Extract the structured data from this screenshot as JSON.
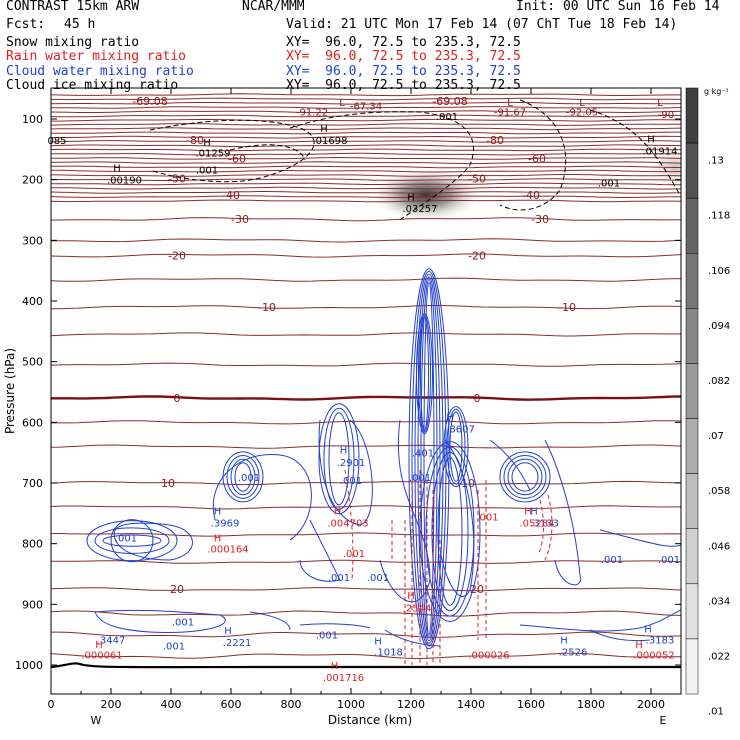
{
  "header": {
    "model": "CONTRAST 15km ARW",
    "center": "NCAR/MMM",
    "init": "Init: 00 UTC Sun 16 Feb 14",
    "fcst_label": "Fcst:",
    "fcst_value": "45 h",
    "valid": "Valid: 21 UTC Mon 17 Feb 14 (07 ChT Tue 18 Feb 14)"
  },
  "fields": [
    {
      "name": "Snow mixing ratio",
      "color": "#000000",
      "xy": "XY=  96.0, 72.5 to 235.3, 72.5"
    },
    {
      "name": "Rain water mixing ratio",
      "color": "#e02020",
      "xy": "XY=  96.0, 72.5 to 235.3, 72.5"
    },
    {
      "name": "Cloud water mixing ratio",
      "color": "#2040d0",
      "xy": "XY=  96.0, 72.5 to 235.3, 72.5"
    },
    {
      "name": "Cloud ice mixing ratio",
      "color": "#000000",
      "xy": "XY=  96.0, 72.5 to 235.3, 72.5"
    }
  ],
  "chart_data": {
    "type": "contour",
    "xlabel": "Distance (km)",
    "ylabel": "Pressure (hPa)",
    "xlim": [
      0,
      2100
    ],
    "ylim": [
      1050,
      50
    ],
    "x_ticks": [
      "0",
      "200",
      "400",
      "600",
      "800",
      "1000",
      "1200",
      "1400",
      "1600",
      "1800",
      "2000"
    ],
    "y_ticks": [
      "100",
      "200",
      "300",
      "400",
      "500",
      "600",
      "700",
      "800",
      "900",
      "1000"
    ],
    "x_end_labels": {
      "left": "W",
      "right": "E"
    },
    "colorbar": {
      "unit": "g kg⁻¹",
      "ticks": [
        ".13",
        ".118",
        ".106",
        ".094",
        ".082",
        ".07",
        ".058",
        ".046",
        ".034",
        ".022",
        ".01"
      ],
      "colors": [
        "#404040",
        "#525252",
        "#646464",
        "#767676",
        "#888888",
        "#9a9a9a",
        "#acacac",
        "#bebebe",
        "#d0d0d0",
        "#e2e2e2",
        "#f2f2f2"
      ]
    },
    "temperature_contours": [
      {
        "p": 70,
        "label": "-69.08",
        "label_x": 330
      },
      {
        "p": 135,
        "label": "-80",
        "label_x": 480
      },
      {
        "p": 165,
        "label": "-60",
        "label_x": 620
      },
      {
        "p": 198,
        "label": "-50",
        "label_x": 420
      },
      {
        "p": 225,
        "label": "-40",
        "label_x": 600
      },
      {
        "p": 265,
        "label": "-30",
        "label_x": 630
      },
      {
        "p": 325,
        "label": "-20",
        "label_x": 420
      },
      {
        "p": 410,
        "label": "-10",
        "label_x": 720
      },
      {
        "p": 560,
        "label": "0",
        "label_x": 420
      },
      {
        "p": 700,
        "label": "10",
        "label_x": 390
      },
      {
        "p": 875,
        "label": "20",
        "label_x": 420
      }
    ],
    "annotations": [
      {
        "text": "L",
        "x": 970,
        "p": 72,
        "color": "#8b1a1a"
      },
      {
        "text": "-67.34",
        "x": 1050,
        "p": 78,
        "color": "#8b1a1a"
      },
      {
        "text": "-91.22",
        "x": 870,
        "p": 88,
        "color": "#8b1a1a"
      },
      {
        "text": "L",
        "x": 1530,
        "p": 72,
        "color": "#8b1a1a"
      },
      {
        "text": "-91.67",
        "x": 1530,
        "p": 88,
        "color": "#8b1a1a"
      },
      {
        "text": "L",
        "x": 1770,
        "p": 72,
        "color": "#8b1a1a"
      },
      {
        "text": "-92.05",
        "x": 1770,
        "p": 88,
        "color": "#8b1a1a"
      },
      {
        "text": "L",
        "x": 2030,
        "p": 72,
        "color": "#8b1a1a"
      },
      {
        "text": "-90",
        "x": 2050,
        "p": 92,
        "color": "#8b1a1a"
      },
      {
        "text": ".001",
        "x": 1320,
        "p": 95,
        "color": "#000000"
      },
      {
        "text": "H",
        "x": 910,
        "p": 115,
        "color": "#000000"
      },
      {
        "text": ".01698",
        "x": 930,
        "p": 135,
        "color": "#000000"
      },
      {
        "text": "H",
        "x": 520,
        "p": 138,
        "color": "#000000"
      },
      {
        "text": ".01259",
        "x": 540,
        "p": 155,
        "color": "#000000"
      },
      {
        "text": "H",
        "x": 2000,
        "p": 132,
        "color": "#000000"
      },
      {
        "text": ".01914",
        "x": 2030,
        "p": 152,
        "color": "#000000"
      },
      {
        "text": "085",
        "x": 20,
        "p": 135,
        "color": "#000000"
      },
      {
        "text": "H",
        "x": 220,
        "p": 180,
        "color": "#000000"
      },
      {
        "text": ".00190",
        "x": 245,
        "p": 200,
        "color": "#000000"
      },
      {
        "text": ".001",
        "x": 520,
        "p": 183,
        "color": "#000000"
      },
      {
        "text": ".001",
        "x": 1860,
        "p": 205,
        "color": "#000000"
      },
      {
        "text": "H",
        "x": 1200,
        "p": 228,
        "color": "#000000"
      },
      {
        "text": ".03257",
        "x": 1230,
        "p": 247,
        "color": "#000000"
      },
      {
        "text": "H",
        "x": 1330,
        "p": 590,
        "color": "#2040d0"
      },
      {
        "text": ".8607",
        "x": 1365,
        "p": 610,
        "color": "#2040d0"
      },
      {
        "text": ".401",
        "x": 1240,
        "p": 650,
        "color": "#2040d0"
      },
      {
        "text": "H",
        "x": 975,
        "p": 645,
        "color": "#2040d0"
      },
      {
        "text": ".2901",
        "x": 1000,
        "p": 665,
        "color": "#2040d0"
      },
      {
        "text": ".001",
        "x": 660,
        "p": 690,
        "color": "#2040d0"
      },
      {
        "text": ".001",
        "x": 1000,
        "p": 695,
        "color": "#2040d0"
      },
      {
        "text": ".001",
        "x": 1230,
        "p": 690,
        "color": "#2040d0"
      },
      {
        "text": "H",
        "x": 555,
        "p": 745,
        "color": "#2040d0"
      },
      {
        "text": ".3969",
        "x": 580,
        "p": 765,
        "color": "#2040d0"
      },
      {
        "text": ".001",
        "x": 250,
        "p": 790,
        "color": "#2040d0"
      },
      {
        "text": "H",
        "x": 1610,
        "p": 745,
        "color": "#2040d0"
      },
      {
        "text": ".3133",
        "x": 1645,
        "p": 765,
        "color": "#2040d0"
      },
      {
        "text": ".001",
        "x": 1870,
        "p": 825,
        "color": "#2040d0"
      },
      {
        "text": ".001",
        "x": 2060,
        "p": 825,
        "color": "#2040d0"
      },
      {
        "text": ".001",
        "x": 960,
        "p": 855,
        "color": "#2040d0"
      },
      {
        "text": ".001",
        "x": 1090,
        "p": 855,
        "color": "#2040d0"
      },
      {
        "text": ".001",
        "x": 440,
        "p": 928,
        "color": "#2040d0"
      },
      {
        "text": "H",
        "x": 590,
        "p": 942,
        "color": "#2040d0"
      },
      {
        "text": ".2221",
        "x": 620,
        "p": 962,
        "color": "#2040d0"
      },
      {
        "text": ".001",
        "x": 410,
        "p": 968,
        "color": "#2040d0"
      },
      {
        "text": ".001",
        "x": 920,
        "p": 950,
        "color": "#2040d0"
      },
      {
        "text": "H",
        "x": 1090,
        "p": 960,
        "color": "#2040d0"
      },
      {
        "text": ".1018",
        "x": 1125,
        "p": 978,
        "color": "#2040d0"
      },
      {
        "text": "H",
        "x": 1710,
        "p": 958,
        "color": "#2040d0"
      },
      {
        "text": ".2526",
        "x": 1740,
        "p": 978,
        "color": "#2040d0"
      },
      {
        "text": ".3447",
        "x": 200,
        "p": 958,
        "color": "#2040d0"
      },
      {
        "text": "H",
        "x": 1990,
        "p": 940,
        "color": "#2040d0"
      },
      {
        "text": ".3183",
        "x": 2030,
        "p": 958,
        "color": "#2040d0"
      },
      {
        "text": "H",
        "x": 955,
        "p": 745,
        "color": "#e02020"
      },
      {
        "text": ".004703",
        "x": 990,
        "p": 765,
        "color": "#e02020"
      },
      {
        "text": "H",
        "x": 555,
        "p": 790,
        "color": "#e02020"
      },
      {
        "text": ".000164",
        "x": 590,
        "p": 808,
        "color": "#e02020"
      },
      {
        "text": ".001",
        "x": 1010,
        "p": 815,
        "color": "#e02020"
      },
      {
        "text": ".001",
        "x": 1455,
        "p": 755,
        "color": "#e02020"
      },
      {
        "text": "H",
        "x": 1590,
        "p": 745,
        "color": "#e02020"
      },
      {
        "text": ".05284",
        "x": 1620,
        "p": 765,
        "color": "#e02020"
      },
      {
        "text": "H",
        "x": 1200,
        "p": 885,
        "color": "#e02020"
      },
      {
        "text": ".2544",
        "x": 1220,
        "p": 905,
        "color": "#e02020"
      },
      {
        "text": "H",
        "x": 160,
        "p": 965,
        "color": "#e02020"
      },
      {
        "text": ".000061",
        "x": 170,
        "p": 983,
        "color": "#e02020"
      },
      {
        "text": ".000026",
        "x": 1460,
        "p": 983,
        "color": "#e02020"
      },
      {
        "text": "H",
        "x": 1960,
        "p": 965,
        "color": "#e02020"
      },
      {
        "text": ".000052",
        "x": 2010,
        "p": 983,
        "color": "#e02020"
      },
      {
        "text": "H",
        "x": 945,
        "p": 1000,
        "color": "#e02020"
      },
      {
        "text": ".001716",
        "x": 975,
        "p": 1020,
        "color": "#e02020"
      }
    ]
  }
}
